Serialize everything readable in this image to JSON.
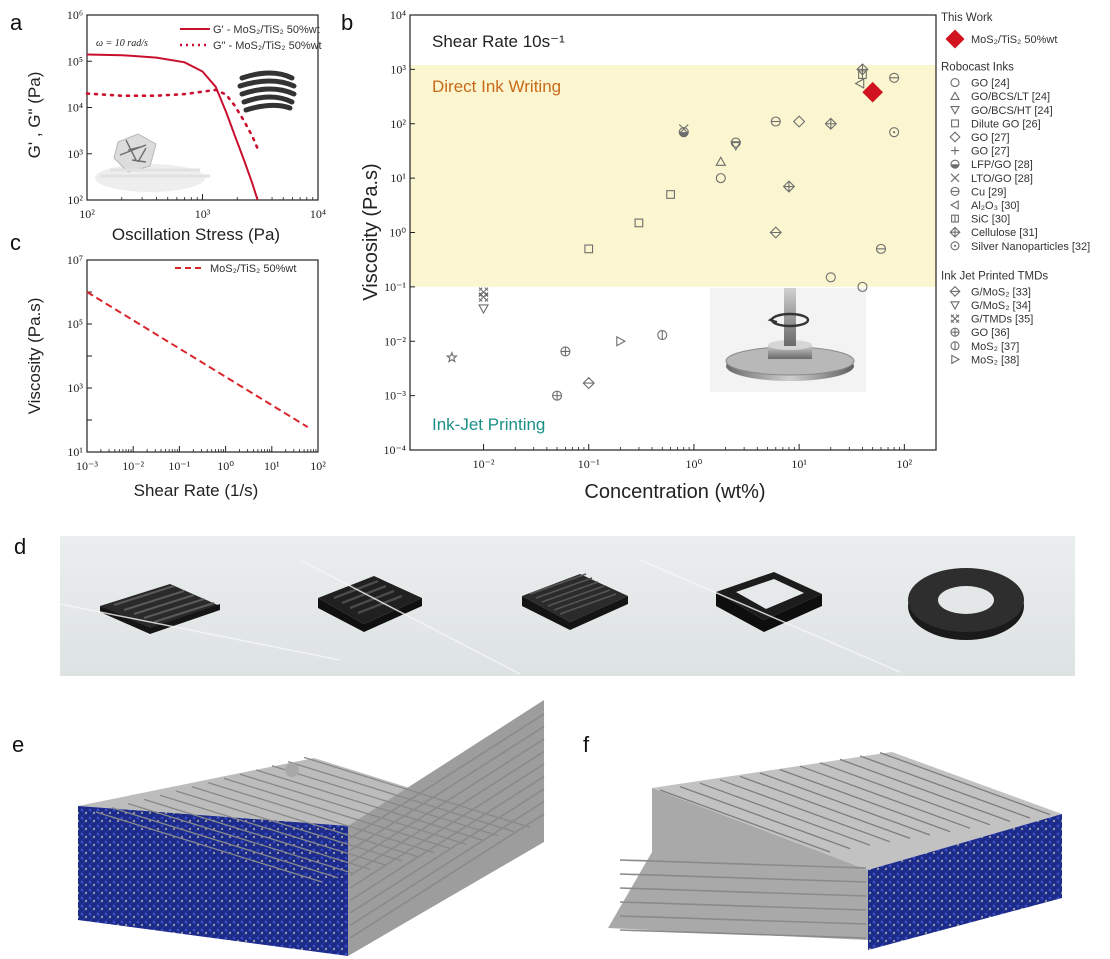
{
  "panels": {
    "a": "a",
    "b": "b",
    "c": "c",
    "d": "d",
    "e": "e",
    "f": "f"
  },
  "chart_data": [
    {
      "id": "a",
      "type": "line",
      "xlabel": "Oscillation Stress (Pa)",
      "ylabel": "G' , G\" (Pa)",
      "xscale": "log",
      "yscale": "log",
      "xlim": [
        100,
        10000
      ],
      "ylim": [
        100,
        1000000
      ],
      "xticks": [
        "10²",
        "10³",
        "10⁴"
      ],
      "yticks": [
        "10²",
        "10³",
        "10⁴",
        "10⁵",
        "10⁶"
      ],
      "annotation": "ω = 10 rad/s",
      "legend_position": "top-right",
      "series": [
        {
          "name": "G' - MoS₂/TiS₂ 50%wt",
          "style": "solid",
          "color": "#c8102e",
          "x": [
            100,
            200,
            400,
            700,
            1000,
            1300,
            1600,
            1900,
            2300,
            2700,
            3000
          ],
          "y": [
            140000,
            135000,
            120000,
            95000,
            60000,
            28000,
            8000,
            2500,
            700,
            230,
            100
          ]
        },
        {
          "name": "G\" - MoS₂/TiS₂ 50%wt",
          "style": "dotted",
          "color": "#c8102e",
          "x": [
            100,
            200,
            400,
            700,
            1000,
            1300,
            1600,
            1900,
            2300,
            2700,
            3000
          ],
          "y": [
            20000,
            18000,
            18000,
            19500,
            22000,
            24000,
            19000,
            11000,
            5000,
            2400,
            1300
          ]
        }
      ]
    },
    {
      "id": "c",
      "type": "line",
      "xlabel": "Shear Rate (1/s)",
      "ylabel": "Viscosity (Pa.s)",
      "xscale": "log",
      "yscale": "log",
      "xlim": [
        0.001,
        100
      ],
      "ylim": [
        10,
        10000000
      ],
      "xticks": [
        "10⁻³",
        "10⁻²",
        "10⁻¹",
        "10⁰",
        "10¹",
        "10²"
      ],
      "yticks": [
        "10¹",
        "10³",
        "10⁵",
        "10⁷"
      ],
      "legend_position": "top-right",
      "series": [
        {
          "name": "MoS₂/TiS₂ 50%wt",
          "style": "dashed",
          "color": "#d9262c",
          "x": [
            0.001,
            60
          ],
          "y": [
            1000000,
            60
          ]
        }
      ]
    },
    {
      "id": "b",
      "type": "scatter",
      "title": "Shear Rate 10s⁻¹",
      "xlabel": "Concentration (wt%)",
      "ylabel": "Viscosity (Pa.s)",
      "xscale": "log",
      "yscale": "log",
      "xlim": [
        0.002,
        200
      ],
      "ylim": [
        0.0001,
        10000
      ],
      "xticks": [
        "10⁻²",
        "10⁻¹",
        "10⁰",
        "10¹",
        "10²"
      ],
      "yticks": [
        "10⁻⁴",
        "10⁻³",
        "10⁻²",
        "10⁻¹",
        "10⁰",
        "10¹",
        "10²",
        "10³",
        "10⁴"
      ],
      "regions": [
        {
          "label": "Direct Ink Writing",
          "ymin": 0.1,
          "ymax": 1200,
          "color": "#fbf6cf",
          "text_color": "#c86a1a"
        },
        {
          "label": "Ink-Jet Printing",
          "text_color": "#1a8f86"
        }
      ],
      "legend_groups": [
        {
          "title": "This Work",
          "entries": [
            {
              "name": "MoS₂/TiS₂ 50%wt",
              "marker": "diamond-filled",
              "color": "#d0131f"
            }
          ]
        },
        {
          "title": "Robocast Inks",
          "entries": [
            {
              "name": "GO [24]",
              "marker": "circle"
            },
            {
              "name": "GO/BCS/LT [24]",
              "marker": "triangle-up"
            },
            {
              "name": "GO/BCS/HT [24]",
              "marker": "triangle-down"
            },
            {
              "name": "Dilute GO [26]",
              "marker": "square"
            },
            {
              "name": "GO [27]",
              "marker": "diamond"
            },
            {
              "name": "GO [27]",
              "marker": "plus"
            },
            {
              "name": "LFP/GO [28]",
              "marker": "circle-half"
            },
            {
              "name": "LTO/GO [28]",
              "marker": "cross"
            },
            {
              "name": "Cu [29]",
              "marker": "circle-minus"
            },
            {
              "name": "Al₂O₃ [30]",
              "marker": "triangle-left"
            },
            {
              "name": "SiC [30]",
              "marker": "square-bar"
            },
            {
              "name": "Cellulose [31]",
              "marker": "diamond-plus"
            },
            {
              "name": "Silver Nanoparticles [32]",
              "marker": "circle-dot"
            }
          ]
        },
        {
          "title": "Ink Jet Printed TMDs",
          "entries": [
            {
              "name": "G/MoS₂ [33]",
              "marker": "diamond-minus"
            },
            {
              "name": "G/MoS₂ [34]",
              "marker": "triangle-down"
            },
            {
              "name": "G/TMDs [35]",
              "marker": "hatched-x"
            },
            {
              "name": "GO [36]",
              "marker": "circle-plus"
            },
            {
              "name": "MoS₂ [37]",
              "marker": "circle-bar"
            },
            {
              "name": "MoS₂ [38]",
              "marker": "triangle-right"
            }
          ]
        }
      ],
      "points": [
        {
          "x": 50,
          "y": 380,
          "marker": "diamond-filled"
        },
        {
          "x": 1.8,
          "y": 10,
          "marker": "circle"
        },
        {
          "x": 20,
          "y": 0.15,
          "marker": "circle"
        },
        {
          "x": 40,
          "y": 0.1,
          "marker": "circle"
        },
        {
          "x": 1.8,
          "y": 20,
          "marker": "triangle-up"
        },
        {
          "x": 0.01,
          "y": 0.04,
          "marker": "triangle-down"
        },
        {
          "x": 2.5,
          "y": 40,
          "marker": "triangle-down"
        },
        {
          "x": 0.1,
          "y": 0.5,
          "marker": "square"
        },
        {
          "x": 0.3,
          "y": 1.5,
          "marker": "square"
        },
        {
          "x": 0.6,
          "y": 5,
          "marker": "square"
        },
        {
          "x": 10,
          "y": 110,
          "marker": "diamond"
        },
        {
          "x": 0.005,
          "y": 0.005,
          "marker": "star"
        },
        {
          "x": 0.8,
          "y": 70,
          "marker": "circle-half"
        },
        {
          "x": 0.8,
          "y": 80,
          "marker": "cross"
        },
        {
          "x": 80,
          "y": 700,
          "marker": "circle-minus"
        },
        {
          "x": 60,
          "y": 0.5,
          "marker": "circle-minus"
        },
        {
          "x": 2.5,
          "y": 45,
          "marker": "circle-minus"
        },
        {
          "x": 6,
          "y": 110,
          "marker": "circle-minus"
        },
        {
          "x": 38,
          "y": 550,
          "marker": "triangle-left"
        },
        {
          "x": 40,
          "y": 800,
          "marker": "square-bar"
        },
        {
          "x": 40,
          "y": 1000,
          "marker": "diamond-plus"
        },
        {
          "x": 20,
          "y": 100,
          "marker": "diamond-plus"
        },
        {
          "x": 8,
          "y": 7,
          "marker": "diamond-plus"
        },
        {
          "x": 80,
          "y": 70,
          "marker": "circle-dot"
        },
        {
          "x": 6,
          "y": 1,
          "marker": "diamond-minus"
        },
        {
          "x": 0.1,
          "y": 0.0017,
          "marker": "diamond-minus"
        },
        {
          "x": 0.01,
          "y": 0.08,
          "marker": "hatched-x"
        },
        {
          "x": 0.01,
          "y": 0.065,
          "marker": "hatched-x"
        },
        {
          "x": 0.05,
          "y": 0.001,
          "marker": "circle-plus"
        },
        {
          "x": 0.06,
          "y": 0.0065,
          "marker": "circle-plus"
        },
        {
          "x": 0.5,
          "y": 0.013,
          "marker": "circle-bar"
        },
        {
          "x": 0.2,
          "y": 0.01,
          "marker": "triangle-right"
        }
      ]
    }
  ],
  "photos": {
    "d": [
      {
        "kind": "interdigitated-grid"
      },
      {
        "kind": "serpentine-square"
      },
      {
        "kind": "woodpile-square"
      },
      {
        "kind": "hollow-square"
      },
      {
        "kind": "ring"
      }
    ],
    "e": "woodpile-render-left",
    "f": "woodpile-render-right"
  },
  "colors": {
    "red": "#c8102e",
    "marker": "#6d6d6d",
    "region": "#fbf6cf",
    "blue": "#1f2f9a",
    "gray": "#9a9a9a"
  }
}
